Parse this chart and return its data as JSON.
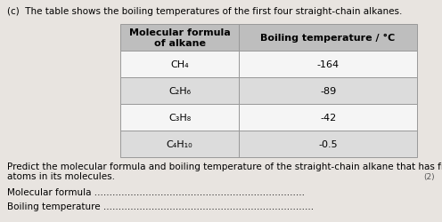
{
  "title_text": "(c)  The table shows the boiling temperatures of the first four straight-chain alkanes.",
  "col_header_1": "Molecular formula\nof alkane",
  "col_header_2": "Boiling temperature / °C",
  "rows": [
    [
      "CH₄",
      "-164"
    ],
    [
      "C₂H₆",
      "-89"
    ],
    [
      "C₃H₈",
      "-42"
    ],
    [
      "C₄H₁₀",
      "-0.5"
    ]
  ],
  "predict_line1": "Predict the molecular formula and boiling temperature of the straight-chain alkane that has five carbon",
  "predict_line2": "atoms in its molecules.",
  "mark_text": "(2)",
  "label1": "Molecular formula",
  "label2": "Boiling temperature",
  "header_bg": "#bebebe",
  "row_bg_white": "#f5f5f5",
  "row_bg_gray": "#dcdcdc",
  "bg_color": "#e8e4e0",
  "font_size_title": 7.5,
  "font_size_table": 8.0,
  "font_size_body": 7.5
}
